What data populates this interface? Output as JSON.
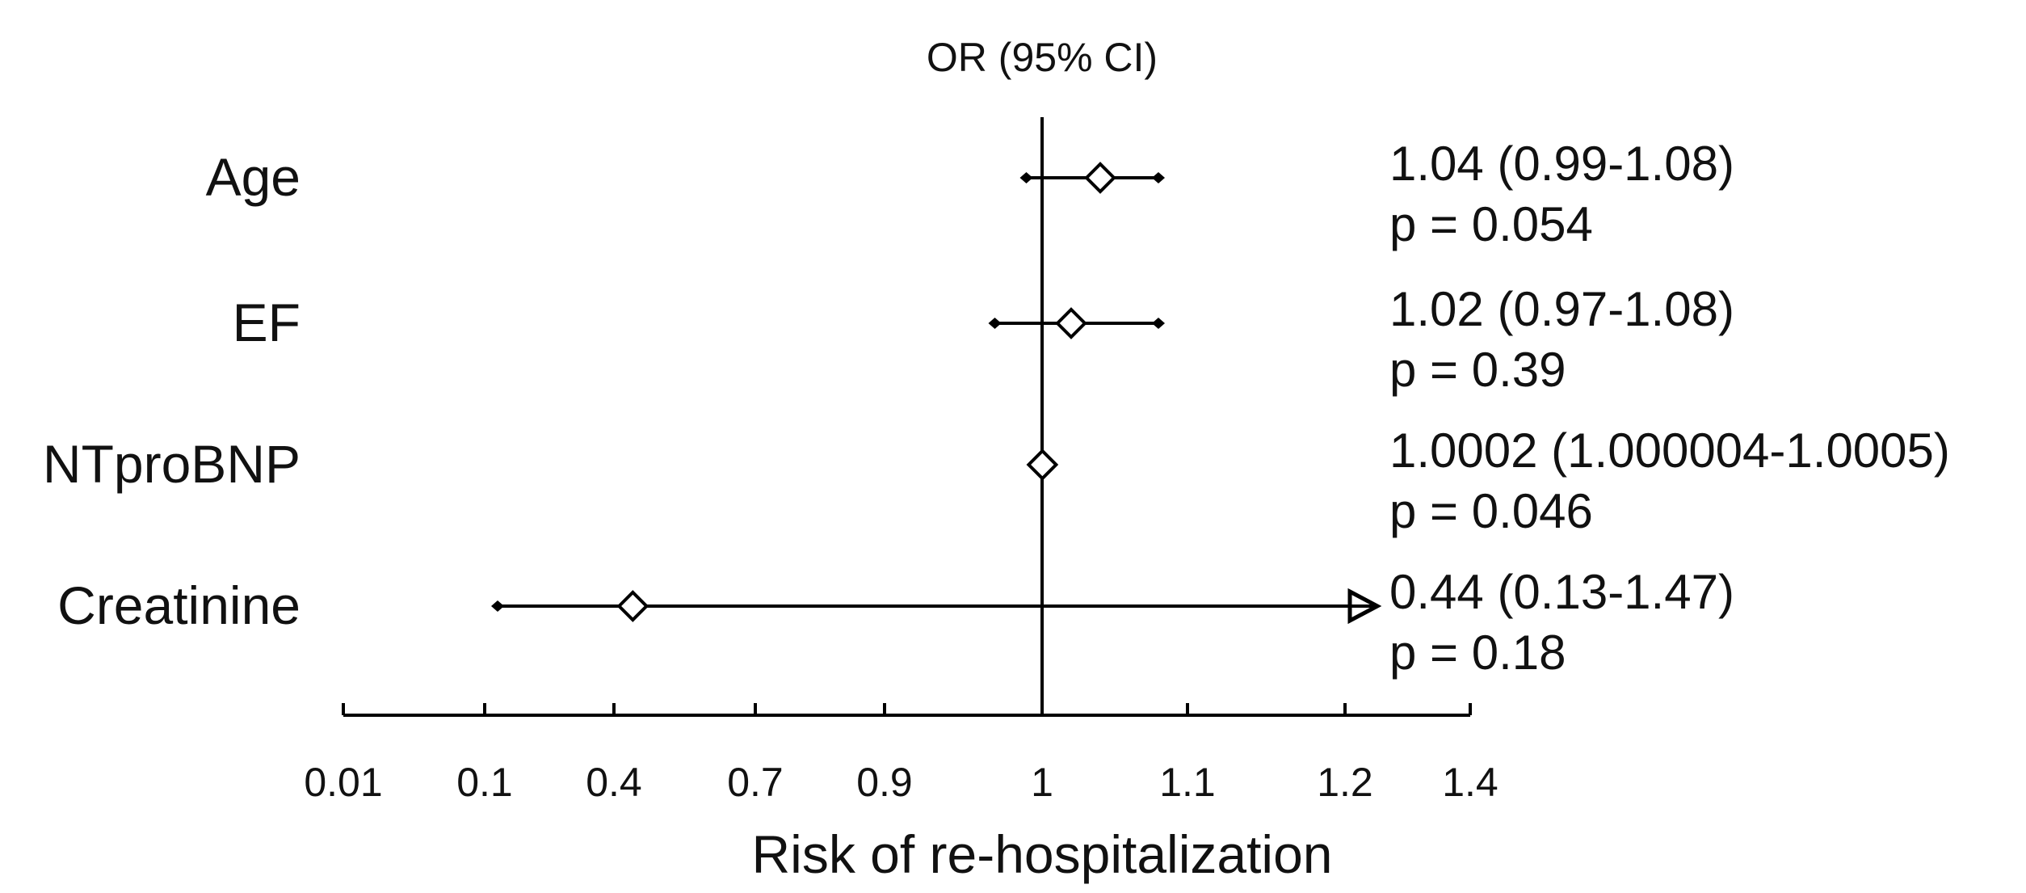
{
  "chart_data": {
    "type": "forest",
    "title": "OR (95% CI)",
    "xlabel": "Risk of re-hospitalization",
    "x_ticks": [
      "0.01",
      "0.1",
      "0.4",
      "0.7",
      "0.9",
      "1",
      "1.1",
      "1.2",
      "1.4"
    ],
    "reference_value": 1,
    "rows": [
      {
        "label": "Age",
        "or": 1.04,
        "ci": [
          0.99,
          1.08
        ],
        "ci_text": "1.04 (0.99-1.08)",
        "p_text": "p = 0.054",
        "arrow": false
      },
      {
        "label": "EF",
        "or": 1.02,
        "ci": [
          0.97,
          1.08
        ],
        "ci_text": "1.02 (0.97-1.08)",
        "p_text": "p = 0.39",
        "arrow": false
      },
      {
        "label": "NTproBNP",
        "or": 1.0002,
        "ci": [
          1.000004,
          1.0005
        ],
        "ci_text": "1.0002 (1.000004-1.0005)",
        "p_text": "p = 0.046",
        "arrow": false
      },
      {
        "label": "Creatinine",
        "or": 0.44,
        "ci": [
          0.13,
          1.47
        ],
        "ci_text": "0.44 (0.13-1.47)",
        "p_text": "p = 0.18",
        "arrow": true
      }
    ]
  }
}
